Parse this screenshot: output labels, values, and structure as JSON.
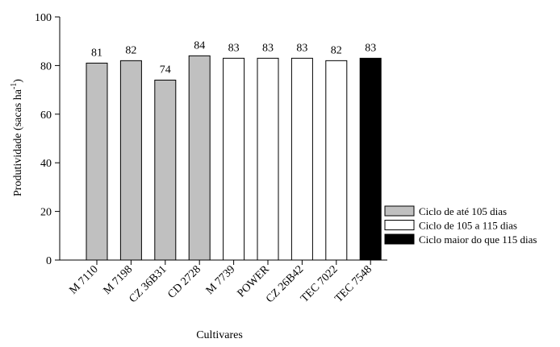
{
  "chart_data": {
    "type": "bar",
    "categories": [
      "M 7110",
      "M 7198",
      "CZ 36B31",
      "CD 2728",
      "M 7739",
      "POWER",
      "CZ 26B42",
      "TEC 7022",
      "TEC 7548"
    ],
    "values": [
      81,
      82,
      74,
      84,
      83,
      83,
      83,
      82,
      83
    ],
    "value_labels": [
      "81",
      "82",
      "74",
      "84",
      "83",
      "83",
      "83",
      "82",
      "83"
    ],
    "groups": [
      0,
      0,
      0,
      0,
      1,
      1,
      1,
      1,
      2
    ],
    "group_legend": [
      {
        "label": "Ciclo de até 105 dias",
        "color": "#c0c0c0"
      },
      {
        "label": "Ciclo de 105 a 115 dias",
        "color": "#ffffff"
      },
      {
        "label": "Ciclo maior do que 115 dias",
        "color": "#000000"
      }
    ],
    "xlabel": "Cultivares",
    "ylabel_main": "Produtividade (sacas ha",
    "ylabel_sup": "-1",
    "ylabel_end": ")",
    "ylim": [
      0,
      100
    ],
    "yticks": [
      "0",
      "20",
      "40",
      "60",
      "80",
      "100"
    ],
    "legend_position": "bottom-right",
    "grid": false
  }
}
